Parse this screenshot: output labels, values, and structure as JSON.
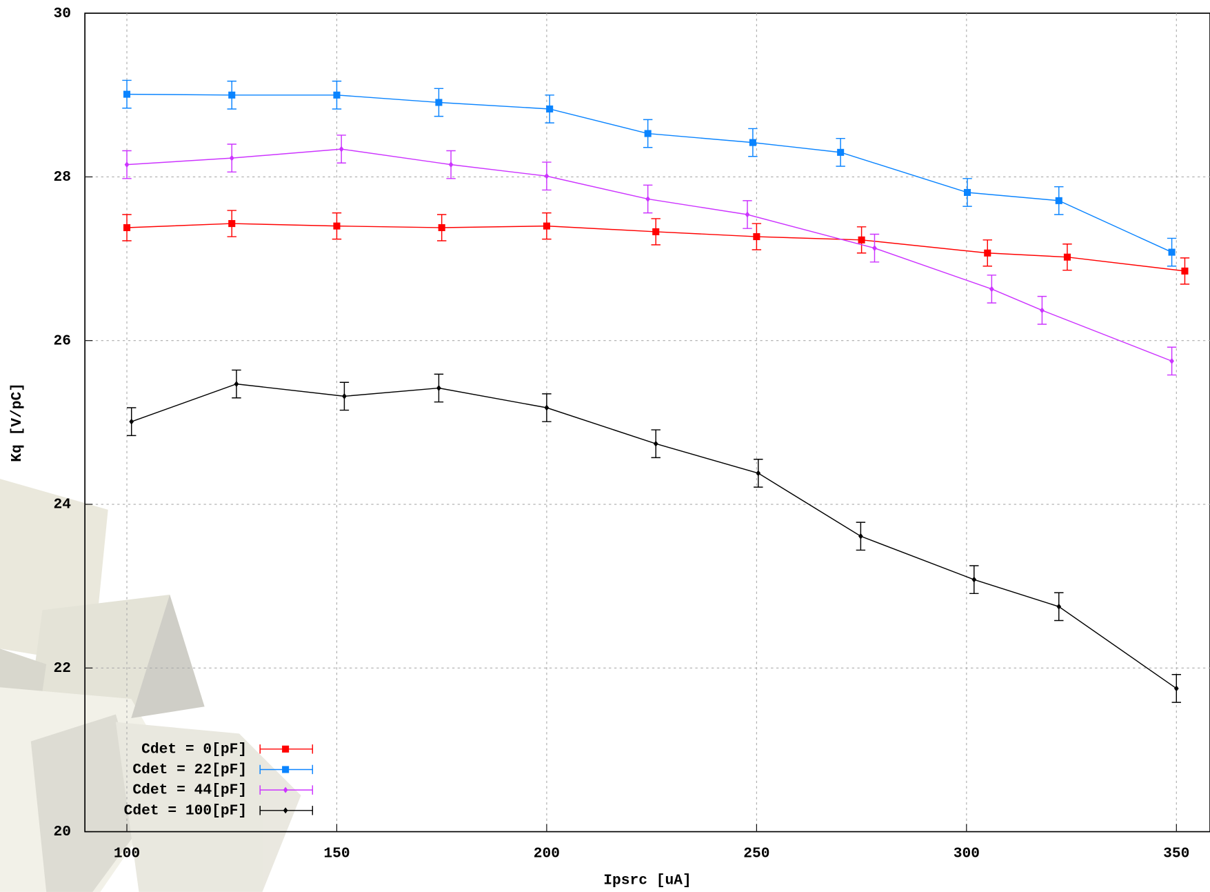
{
  "chart_data": {
    "type": "line",
    "x_label": "Ipsrc [uA]",
    "y_label": "Kq [V/pC]",
    "xlim": [
      90,
      358
    ],
    "ylim": [
      20,
      30
    ],
    "xticks": [
      100,
      150,
      200,
      250,
      300,
      350
    ],
    "yticks": [
      20,
      22,
      24,
      26,
      28,
      30
    ],
    "grid": true,
    "legend": "lower left",
    "series": [
      {
        "name": "Cdet = 0[pF]",
        "color": "#ff0000",
        "marker": "square",
        "x": [
          100,
          125,
          150,
          175,
          200,
          226,
          250,
          275,
          305,
          324,
          352
        ],
        "values": [
          27.38,
          27.43,
          27.4,
          27.38,
          27.4,
          27.33,
          27.27,
          27.23,
          27.07,
          27.02,
          26.85
        ],
        "errors": [
          0.16,
          0.16,
          0.16,
          0.16,
          0.16,
          0.16,
          0.16,
          0.16,
          0.16,
          0.16,
          0.16
        ]
      },
      {
        "name": "Cdet = 22[pF]",
        "color": "#0a84ff",
        "marker": "square",
        "x": [
          100,
          125,
          150,
          174.3,
          200.7,
          224.1,
          249.1,
          270,
          300.2,
          322,
          348.9
        ],
        "values": [
          29.01,
          29.0,
          29.0,
          28.91,
          28.83,
          28.53,
          28.42,
          28.3,
          27.81,
          27.71,
          27.08
        ],
        "errors": [
          0.17,
          0.17,
          0.17,
          0.17,
          0.17,
          0.17,
          0.17,
          0.17,
          0.17,
          0.17,
          0.17
        ]
      },
      {
        "name": "Cdet = 44[pF]",
        "color": "#cc33ff",
        "marker": "diamond",
        "x": [
          100,
          125,
          151.1,
          177.2,
          200,
          224.1,
          247.8,
          278.1,
          306,
          318,
          348.9
        ],
        "values": [
          28.15,
          28.23,
          28.34,
          28.15,
          28.01,
          27.73,
          27.54,
          27.13,
          26.63,
          26.37,
          25.75
        ],
        "errors": [
          0.17,
          0.17,
          0.17,
          0.17,
          0.17,
          0.17,
          0.17,
          0.17,
          0.17,
          0.17,
          0.17
        ]
      },
      {
        "name": "Cdet = 100[pF]",
        "color": "#000000",
        "marker": "diamond",
        "x": [
          101.1,
          126.1,
          151.8,
          174.3,
          200,
          226,
          250.4,
          274.8,
          301.8,
          322,
          350
        ],
        "values": [
          25.01,
          25.47,
          25.32,
          25.42,
          25.18,
          24.74,
          24.38,
          23.61,
          23.08,
          22.75,
          21.75
        ],
        "errors": [
          0.17,
          0.17,
          0.17,
          0.17,
          0.17,
          0.17,
          0.17,
          0.17,
          0.17,
          0.17,
          0.17
        ]
      }
    ]
  }
}
